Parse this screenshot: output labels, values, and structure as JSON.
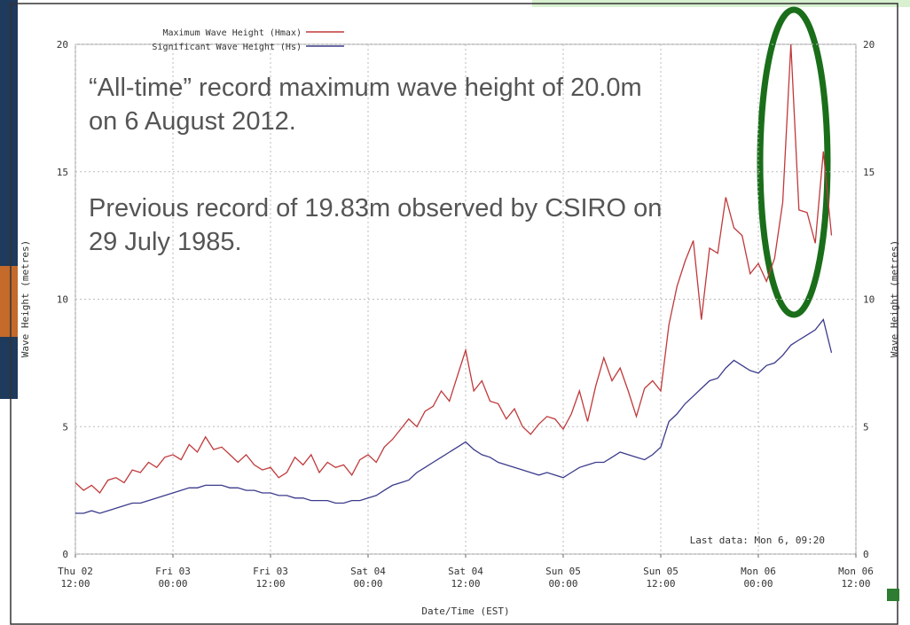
{
  "chart_data": {
    "type": "line",
    "legend_entries_note_free": null,
    "annotations": [
      "“All-time” record maximum wave height of 20.0m on 6 August 2012.",
      "Previous record of 19.83m observed by CSIRO on 29 July 1985."
    ],
    "last_data": "Last data: Mon  6, 09:20",
    "xlabel": "Date/Time (EST)",
    "ylabel": "Wave Height (metres)",
    "x": [
      0,
      1,
      2,
      3,
      4,
      5,
      6,
      7,
      8,
      9,
      10,
      11,
      12,
      13,
      14,
      15,
      16,
      17,
      18,
      19,
      20,
      21,
      22,
      23,
      24,
      25,
      26,
      27,
      28,
      29,
      30,
      31,
      32,
      33,
      34,
      35,
      36,
      37,
      38,
      39,
      40,
      41,
      42,
      43,
      44,
      45,
      46,
      47,
      48,
      49,
      50,
      51,
      52,
      53,
      54,
      55,
      56,
      57,
      58,
      59,
      60,
      61,
      62,
      63,
      64,
      65,
      66,
      67,
      68,
      69,
      70,
      71,
      72,
      73,
      74,
      75,
      76,
      77,
      78,
      79,
      80,
      81,
      82,
      83,
      84,
      85,
      86,
      87,
      88,
      89,
      90,
      91,
      92,
      93
    ],
    "series": [
      {
        "name": "Maximum Wave Height (Hmax)",
        "color": "#c0393b",
        "values": [
          2.8,
          2.5,
          2.7,
          2.4,
          2.9,
          3.0,
          2.8,
          3.3,
          3.2,
          3.6,
          3.4,
          3.8,
          3.9,
          3.7,
          4.3,
          4.0,
          4.6,
          4.1,
          4.2,
          3.9,
          3.6,
          3.9,
          3.5,
          3.3,
          3.4,
          3.0,
          3.2,
          3.8,
          3.5,
          3.9,
          3.2,
          3.6,
          3.4,
          3.5,
          3.1,
          3.7,
          3.9,
          3.6,
          4.2,
          4.5,
          4.9,
          5.3,
          5.0,
          5.6,
          5.8,
          6.4,
          6.0,
          7.0,
          8.0,
          6.4,
          6.8,
          6.0,
          5.9,
          5.3,
          5.7,
          5.0,
          4.7,
          5.1,
          5.4,
          5.3,
          4.9,
          5.5,
          6.4,
          5.2,
          6.6,
          7.7,
          6.8,
          7.3,
          6.4,
          5.4,
          6.5,
          6.8,
          6.4,
          9.0,
          10.5,
          11.5,
          12.3,
          9.2,
          12.0,
          11.8,
          14.0,
          12.8,
          12.5,
          11.0,
          11.4,
          10.7,
          11.6,
          13.8,
          20.0,
          13.5,
          13.4,
          12.2,
          15.8,
          12.5
        ]
      },
      {
        "name": "Significant Wave Height (Hs)",
        "color": "#3b3b8c",
        "values": [
          1.6,
          1.6,
          1.7,
          1.6,
          1.7,
          1.8,
          1.9,
          2.0,
          2.0,
          2.1,
          2.2,
          2.3,
          2.4,
          2.5,
          2.6,
          2.6,
          2.7,
          2.7,
          2.7,
          2.6,
          2.6,
          2.5,
          2.5,
          2.4,
          2.4,
          2.3,
          2.3,
          2.2,
          2.2,
          2.1,
          2.1,
          2.1,
          2.0,
          2.0,
          2.1,
          2.1,
          2.2,
          2.3,
          2.5,
          2.7,
          2.8,
          2.9,
          3.2,
          3.4,
          3.6,
          3.8,
          4.0,
          4.2,
          4.4,
          4.1,
          3.9,
          3.8,
          3.6,
          3.5,
          3.4,
          3.3,
          3.2,
          3.1,
          3.2,
          3.1,
          3.0,
          3.2,
          3.4,
          3.5,
          3.6,
          3.6,
          3.8,
          4.0,
          3.9,
          3.8,
          3.7,
          3.9,
          4.2,
          5.2,
          5.5,
          5.9,
          6.2,
          6.5,
          6.8,
          6.9,
          7.3,
          7.6,
          7.4,
          7.2,
          7.1,
          7.4,
          7.5,
          7.8,
          8.2,
          8.4,
          8.6,
          8.8,
          9.2,
          7.9
        ]
      }
    ],
    "xlim": [
      0,
      96
    ],
    "xticks": [
      {
        "value": 0,
        "label": "Thu 02 12:00"
      },
      {
        "value": 12,
        "label": "Fri 03 00:00"
      },
      {
        "value": 24,
        "label": "Fri 03 12:00"
      },
      {
        "value": 36,
        "label": "Sat 04 00:00"
      },
      {
        "value": 48,
        "label": "Sat 04 12:00"
      },
      {
        "value": 60,
        "label": "Sun 05 00:00"
      },
      {
        "value": 72,
        "label": "Sun 05 12:00"
      },
      {
        "value": 84,
        "label": "Mon 06 00:00"
      },
      {
        "value": 96,
        "label": "Mon 06 12:00"
      }
    ],
    "ylim": [
      0,
      20
    ],
    "yticks": [
      0,
      5,
      10,
      15,
      20
    ],
    "grid": true
  }
}
